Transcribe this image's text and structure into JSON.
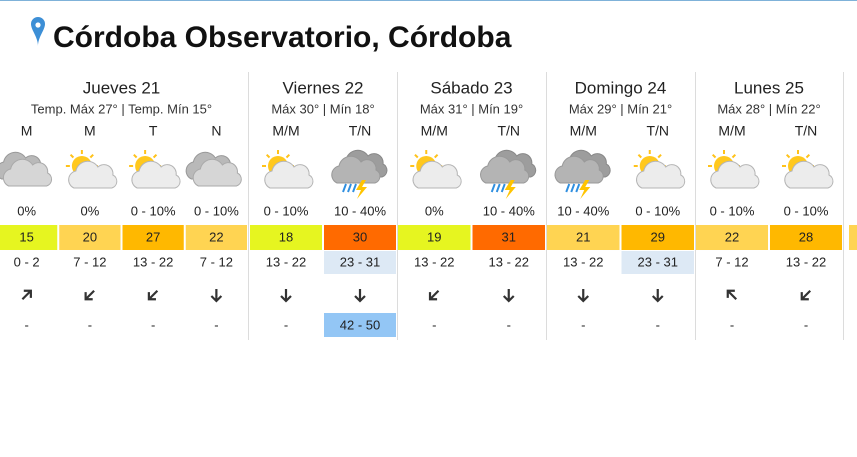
{
  "header": {
    "title": "Córdoba Observatorio, Córdoba"
  },
  "days": [
    {
      "name": "Jueves 21",
      "summary": "Temp. Máx 27° | Temp. Mín 15°",
      "periods": [
        {
          "label": "M",
          "icon": "cloudy",
          "rain": "0%",
          "temp": 15,
          "temp_color": "#e6f520",
          "wind": "0 - 2",
          "wind_deg": 45,
          "gust": "-"
        },
        {
          "label": "M",
          "icon": "partly-sunny",
          "rain": "0%",
          "temp": 20,
          "temp_color": "#ffd452",
          "wind": "7 - 12",
          "wind_deg": 225,
          "gust": "-"
        },
        {
          "label": "T",
          "icon": "partly-sunny",
          "rain": "0 - 10%",
          "temp": 27,
          "temp_color": "#ffb800",
          "wind": "13 - 22",
          "wind_deg": 225,
          "gust": "-"
        },
        {
          "label": "N",
          "icon": "cloudy",
          "rain": "0 - 10%",
          "temp": 22,
          "temp_color": "#ffd452",
          "wind": "7 - 12",
          "wind_deg": 180,
          "gust": "-"
        }
      ]
    },
    {
      "name": "Viernes 22",
      "summary": "Máx 30° | Mín 18°",
      "periods": [
        {
          "label": "M/M",
          "icon": "partly-sunny",
          "rain": "0 - 10%",
          "temp": 18,
          "temp_color": "#e6f520",
          "wind": "13 - 22",
          "wind_deg": 180,
          "gust": "-"
        },
        {
          "label": "T/N",
          "icon": "storm",
          "rain": "10 - 40%",
          "temp": 30,
          "temp_color": "#ff6a00",
          "wind": "23 - 31",
          "wind_color": "#dde9f5",
          "wind_deg": 180,
          "gust": "42 - 50",
          "gust_color": "#93c6f5"
        }
      ]
    },
    {
      "name": "Sábado 23",
      "summary": "Máx 31° | Mín 19°",
      "periods": [
        {
          "label": "M/M",
          "icon": "partly-sunny",
          "rain": "0%",
          "temp": 19,
          "temp_color": "#e6f520",
          "wind": "13 - 22",
          "wind_deg": 225,
          "gust": "-"
        },
        {
          "label": "T/N",
          "icon": "storm",
          "rain": "10 - 40%",
          "temp": 31,
          "temp_color": "#ff6a00",
          "wind": "13 - 22",
          "wind_deg": 180,
          "gust": "-"
        }
      ]
    },
    {
      "name": "Domingo 24",
      "summary": "Máx 29° | Mín 21°",
      "periods": [
        {
          "label": "M/M",
          "icon": "storm",
          "rain": "10 - 40%",
          "temp": 21,
          "temp_color": "#ffd452",
          "wind": "13 - 22",
          "wind_deg": 180,
          "gust": "-"
        },
        {
          "label": "T/N",
          "icon": "partly-sunny",
          "rain": "0 - 10%",
          "temp": 29,
          "temp_color": "#ffb800",
          "wind": "23 - 31",
          "wind_color": "#dde9f5",
          "wind_deg": 180,
          "gust": "-"
        }
      ]
    },
    {
      "name": "Lunes 25",
      "summary": "Máx 28° | Mín 22°",
      "periods": [
        {
          "label": "M/M",
          "icon": "partly-sunny",
          "rain": "0 - 10%",
          "temp": 22,
          "temp_color": "#ffd452",
          "wind": "7 - 12",
          "wind_deg": 315,
          "gust": "-"
        },
        {
          "label": "T/N",
          "icon": "partly-sunny",
          "rain": "0 - 10%",
          "temp": 28,
          "temp_color": "#ffb800",
          "wind": "13 - 22",
          "wind_deg": 225,
          "gust": "-"
        }
      ]
    }
  ]
}
